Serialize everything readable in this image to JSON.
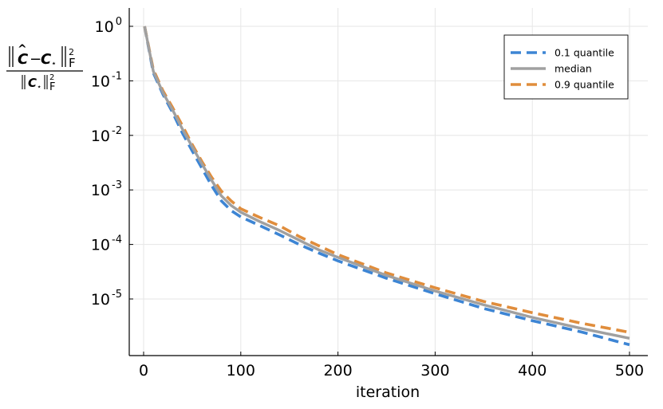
{
  "chart_data": {
    "type": "line",
    "xlabel": "iteration",
    "ylabel": "||Ĉ − C⋆||²_F / ||C⋆||²_F",
    "xlim": [
      -10,
      505
    ],
    "ylim": [
      2e-07,
      1.2
    ],
    "yscale": "log",
    "xticks": [
      0,
      100,
      200,
      300,
      400,
      500
    ],
    "xtick_labels": [
      "0",
      "100",
      "200",
      "300",
      "400",
      "500"
    ],
    "yticks": [
      1,
      0.1,
      0.01,
      0.001,
      0.0001,
      1e-05
    ],
    "ytick_labels": [
      {
        "base": "10",
        "exp": "0"
      },
      {
        "base": "10",
        "exp": "-1"
      },
      {
        "base": "10",
        "exp": "-2"
      },
      {
        "base": "10",
        "exp": "-3"
      },
      {
        "base": "10",
        "exp": "-4"
      },
      {
        "base": "10",
        "exp": "-5"
      }
    ],
    "grid": true,
    "legend_position": "top-right",
    "series": [
      {
        "name": "0.1 quantile",
        "color": "#3d85d4",
        "dash": "dashed",
        "x": [
          1,
          10,
          20,
          30,
          40,
          50,
          60,
          70,
          80,
          90,
          100,
          120,
          140,
          160,
          180,
          200,
          250,
          300,
          350,
          400,
          450,
          500
        ],
        "values": [
          1.0,
          0.14,
          0.056,
          0.026,
          0.011,
          0.0052,
          0.0025,
          0.0012,
          0.00063,
          0.00042,
          0.00032,
          0.00022,
          0.00015,
          0.0001,
          7e-05,
          5e-05,
          2.4e-05,
          1.25e-05,
          6.7e-06,
          4e-06,
          2.5e-06,
          1.45e-06
        ]
      },
      {
        "name": "median",
        "color": "#a0a0a0",
        "dash": "solid",
        "x": [
          1,
          10,
          20,
          30,
          40,
          50,
          60,
          70,
          80,
          90,
          100,
          120,
          140,
          160,
          180,
          200,
          250,
          300,
          350,
          400,
          450,
          500
        ],
        "values": [
          1.0,
          0.15,
          0.06,
          0.029,
          0.013,
          0.0062,
          0.003,
          0.0015,
          0.00078,
          0.00052,
          0.00039,
          0.00026,
          0.00018,
          0.00012,
          8e-05,
          5.8e-05,
          2.7e-05,
          1.4e-05,
          7.8e-06,
          4.6e-06,
          2.9e-06,
          1.9e-06
        ]
      },
      {
        "name": "0.9 quantile",
        "color": "#e08d3c",
        "dash": "dashed",
        "x": [
          1,
          10,
          20,
          30,
          40,
          50,
          60,
          70,
          80,
          90,
          100,
          120,
          140,
          160,
          180,
          200,
          250,
          300,
          350,
          400,
          450,
          500
        ],
        "values": [
          1.0,
          0.16,
          0.065,
          0.032,
          0.015,
          0.0068,
          0.0033,
          0.0017,
          0.00095,
          0.00063,
          0.00045,
          0.00031,
          0.00022,
          0.00014,
          9.5e-05,
          6.5e-05,
          3e-05,
          1.6e-05,
          9e-06,
          5.6e-06,
          3.6e-06,
          2.45e-06
        ]
      }
    ]
  }
}
